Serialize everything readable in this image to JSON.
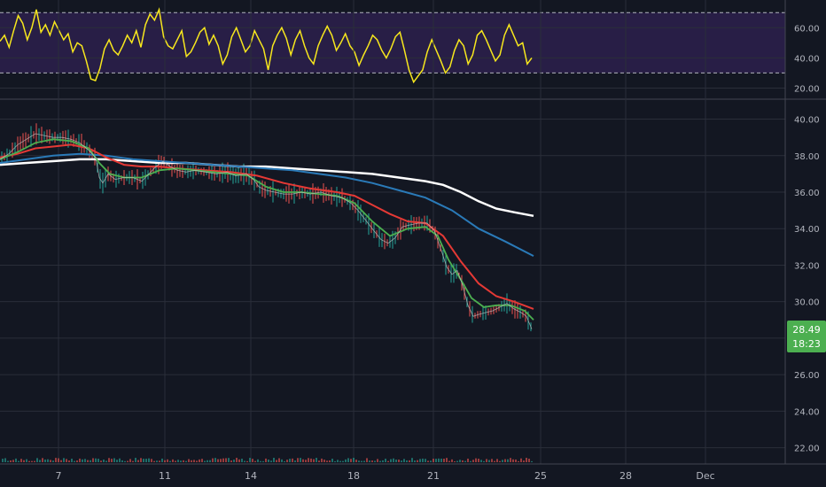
{
  "colors": {
    "background": "#131722",
    "grid": "#2a2e39",
    "rsi_line": "#f7e71d",
    "rsi_band": "#2b1f4a",
    "ema_fast": "#4caf50",
    "ema_mid": "#e53935",
    "sma_blue": "#2a7ab8",
    "sma_white": "#ffffff",
    "candle_up": "#26a69a",
    "candle_down": "#ef5350",
    "price_tag": "#4caf50"
  },
  "price_tag": {
    "price": "28.49",
    "countdown": "18:23"
  },
  "chart_data": [
    {
      "type": "line",
      "panel": "rsi",
      "yaxis_ticks": [
        20,
        40,
        60
      ],
      "ylim": [
        15,
        76
      ],
      "band": [
        30,
        70
      ],
      "x_range": [
        0,
        600
      ],
      "series": [
        {
          "values": [
            51,
            55,
            47,
            58,
            68,
            63,
            52,
            60,
            72,
            57,
            62,
            55,
            64,
            58,
            52,
            56,
            44,
            50,
            48,
            38,
            26,
            25,
            33,
            46,
            52,
            45,
            42,
            48,
            55,
            50,
            58,
            47,
            62,
            69,
            65,
            72,
            54,
            48,
            46,
            52,
            58,
            41,
            44,
            50,
            57,
            60,
            49,
            55,
            48,
            36,
            42,
            54,
            60,
            52,
            44,
            48,
            58,
            52,
            46,
            32,
            48,
            55,
            60,
            53,
            42,
            52,
            58,
            48,
            40,
            36,
            48,
            55,
            61,
            55,
            45,
            50,
            56,
            48,
            44,
            35,
            42,
            48,
            55,
            52,
            45,
            40,
            46,
            54,
            57,
            45,
            32,
            24,
            28,
            32,
            44,
            52,
            45,
            38,
            30,
            34,
            45,
            52,
            48,
            36,
            42,
            55,
            58,
            52,
            45,
            38,
            42,
            55,
            62,
            55,
            48,
            50,
            36,
            40
          ]
        }
      ],
      "x_ticks": [
        {
          "label": "7",
          "index": 66
        },
        {
          "label": "11",
          "index": 186
        },
        {
          "label": "14",
          "index": 283
        },
        {
          "label": "18",
          "index": 399
        },
        {
          "label": "21",
          "index": 489
        },
        {
          "label": "25",
          "index": 610
        },
        {
          "label": "28",
          "index": 706
        },
        {
          "label": "Dec",
          "index": 796
        }
      ]
    },
    {
      "type": "line",
      "panel": "price",
      "yaxis_ticks": [
        22,
        24,
        26,
        28,
        30,
        32,
        34,
        36,
        38,
        40
      ],
      "ylim": [
        21.3,
        40.9
      ],
      "x_range": [
        0,
        604
      ],
      "series": [
        {
          "key": "price",
          "points": [
            [
              0,
              37.8
            ],
            [
              10,
              38.1
            ],
            [
              20,
              38.6
            ],
            [
              30,
              38.9
            ],
            [
              40,
              39.2
            ],
            [
              50,
              39.1
            ],
            [
              60,
              39.0
            ],
            [
              70,
              39.0
            ],
            [
              80,
              38.9
            ],
            [
              90,
              38.7
            ],
            [
              100,
              38.3
            ],
            [
              108,
              37.9
            ],
            [
              112,
              36.8
            ],
            [
              116,
              36.5
            ],
            [
              122,
              37.0
            ],
            [
              130,
              36.7
            ],
            [
              140,
              36.8
            ],
            [
              150,
              36.8
            ],
            [
              160,
              36.6
            ],
            [
              168,
              37.0
            ],
            [
              176,
              37.4
            ],
            [
              184,
              37.7
            ],
            [
              192,
              37.4
            ],
            [
              200,
              37.2
            ],
            [
              210,
              37.1
            ],
            [
              220,
              37.2
            ],
            [
              232,
              37.1
            ],
            [
              244,
              37.0
            ],
            [
              256,
              37.1
            ],
            [
              266,
              36.9
            ],
            [
              278,
              37.0
            ],
            [
              286,
              36.7
            ],
            [
              292,
              36.3
            ],
            [
              300,
              36.1
            ],
            [
              310,
              36.0
            ],
            [
              320,
              35.9
            ],
            [
              330,
              35.9
            ],
            [
              340,
              36.0
            ],
            [
              350,
              35.9
            ],
            [
              362,
              36.0
            ],
            [
              374,
              35.8
            ],
            [
              386,
              35.7
            ],
            [
              396,
              35.4
            ],
            [
              404,
              35.0
            ],
            [
              412,
              34.5
            ],
            [
              420,
              34.0
            ],
            [
              430,
              33.4
            ],
            [
              438,
              33.2
            ],
            [
              446,
              33.5
            ],
            [
              454,
              34.1
            ],
            [
              462,
              34.2
            ],
            [
              472,
              34.3
            ],
            [
              482,
              34.3
            ],
            [
              490,
              33.9
            ],
            [
              498,
              32.8
            ],
            [
              504,
              31.9
            ],
            [
              510,
              31.5
            ],
            [
              516,
              31.7
            ],
            [
              522,
              30.9
            ],
            [
              528,
              29.8
            ],
            [
              534,
              29.2
            ],
            [
              540,
              29.3
            ],
            [
              548,
              29.4
            ],
            [
              556,
              29.5
            ],
            [
              564,
              29.7
            ],
            [
              572,
              29.9
            ],
            [
              580,
              29.6
            ],
            [
              588,
              29.4
            ],
            [
              594,
              29.2
            ],
            [
              600,
              28.5
            ]
          ]
        },
        {
          "key": "ema_fast",
          "points": [
            [
              0,
              37.8
            ],
            [
              20,
              38.2
            ],
            [
              40,
              38.7
            ],
            [
              60,
              38.9
            ],
            [
              80,
              38.8
            ],
            [
              100,
              38.4
            ],
            [
              112,
              37.6
            ],
            [
              124,
              37.0
            ],
            [
              140,
              36.8
            ],
            [
              160,
              36.8
            ],
            [
              180,
              37.2
            ],
            [
              200,
              37.3
            ],
            [
              220,
              37.2
            ],
            [
              240,
              37.1
            ],
            [
              260,
              37.0
            ],
            [
              280,
              36.9
            ],
            [
              300,
              36.3
            ],
            [
              320,
              36.0
            ],
            [
              340,
              36.0
            ],
            [
              360,
              35.9
            ],
            [
              380,
              35.8
            ],
            [
              400,
              35.4
            ],
            [
              420,
              34.4
            ],
            [
              440,
              33.6
            ],
            [
              460,
              34.0
            ],
            [
              480,
              34.1
            ],
            [
              494,
              33.6
            ],
            [
              506,
              32.3
            ],
            [
              520,
              31.2
            ],
            [
              532,
              30.2
            ],
            [
              546,
              29.7
            ],
            [
              560,
              29.8
            ],
            [
              576,
              29.8
            ],
            [
              592,
              29.5
            ],
            [
              602,
              29.0
            ]
          ]
        },
        {
          "key": "ema_mid",
          "points": [
            [
              0,
              37.9
            ],
            [
              20,
              38.1
            ],
            [
              40,
              38.4
            ],
            [
              60,
              38.5
            ],
            [
              80,
              38.6
            ],
            [
              100,
              38.4
            ],
            [
              120,
              37.9
            ],
            [
              140,
              37.5
            ],
            [
              160,
              37.4
            ],
            [
              180,
              37.4
            ],
            [
              200,
              37.3
            ],
            [
              230,
              37.2
            ],
            [
              260,
              37.1
            ],
            [
              290,
              36.9
            ],
            [
              320,
              36.5
            ],
            [
              350,
              36.2
            ],
            [
              380,
              36.0
            ],
            [
              400,
              35.8
            ],
            [
              420,
              35.3
            ],
            [
              440,
              34.8
            ],
            [
              460,
              34.4
            ],
            [
              480,
              34.3
            ],
            [
              500,
              33.6
            ],
            [
              520,
              32.2
            ],
            [
              540,
              31.0
            ],
            [
              560,
              30.3
            ],
            [
              580,
              30.0
            ],
            [
              602,
              29.6
            ]
          ]
        },
        {
          "key": "sma_blue",
          "points": [
            [
              0,
              37.6
            ],
            [
              30,
              37.8
            ],
            [
              60,
              38.0
            ],
            [
              90,
              38.1
            ],
            [
              120,
              38.0
            ],
            [
              150,
              37.8
            ],
            [
              180,
              37.7
            ],
            [
              210,
              37.6
            ],
            [
              240,
              37.5
            ],
            [
              270,
              37.4
            ],
            [
              300,
              37.3
            ],
            [
              330,
              37.2
            ],
            [
              360,
              37.0
            ],
            [
              390,
              36.8
            ],
            [
              420,
              36.5
            ],
            [
              450,
              36.1
            ],
            [
              480,
              35.7
            ],
            [
              510,
              35.0
            ],
            [
              540,
              34.0
            ],
            [
              570,
              33.3
            ],
            [
              602,
              32.5
            ]
          ]
        },
        {
          "key": "sma_white",
          "points": [
            [
              0,
              37.5
            ],
            [
              30,
              37.6
            ],
            [
              60,
              37.7
            ],
            [
              90,
              37.8
            ],
            [
              120,
              37.8
            ],
            [
              150,
              37.7
            ],
            [
              180,
              37.6
            ],
            [
              210,
              37.6
            ],
            [
              240,
              37.5
            ],
            [
              270,
              37.4
            ],
            [
              300,
              37.4
            ],
            [
              330,
              37.3
            ],
            [
              360,
              37.2
            ],
            [
              390,
              37.1
            ],
            [
              420,
              37.0
            ],
            [
              450,
              36.8
            ],
            [
              480,
              36.6
            ],
            [
              500,
              36.4
            ],
            [
              520,
              36.0
            ],
            [
              540,
              35.5
            ],
            [
              560,
              35.1
            ],
            [
              580,
              34.9
            ],
            [
              602,
              34.7
            ]
          ]
        }
      ]
    }
  ]
}
